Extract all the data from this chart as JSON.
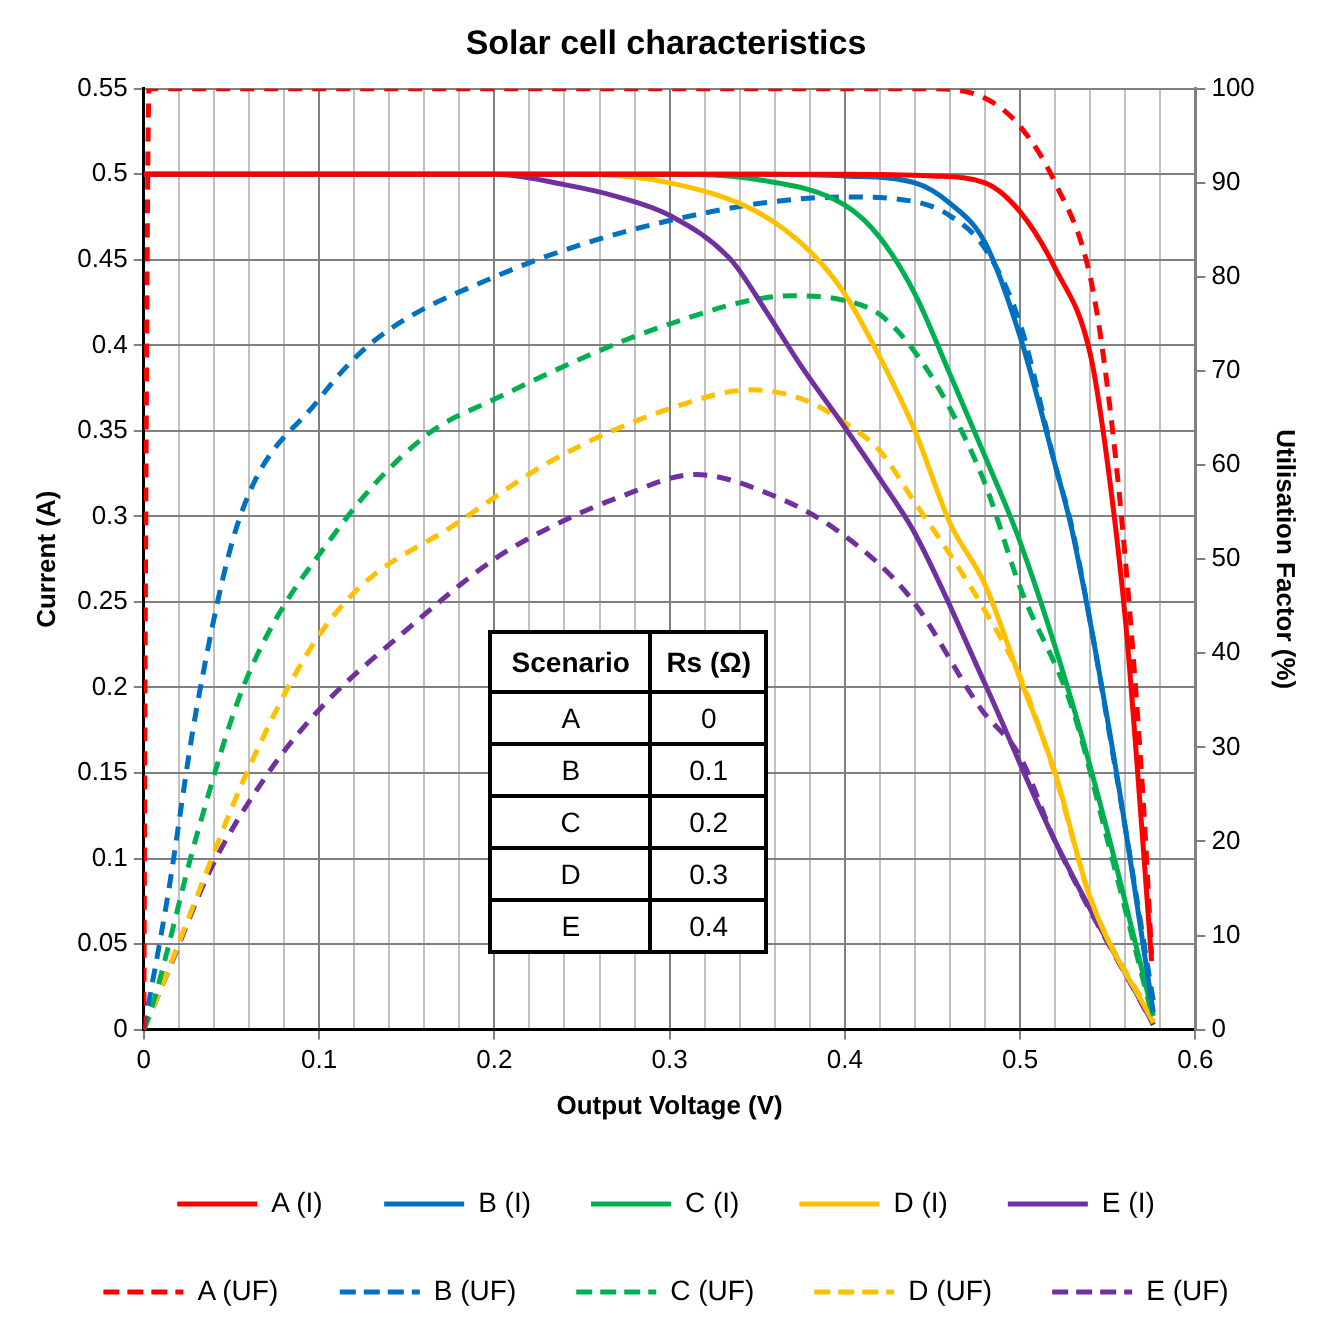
{
  "chart_data": {
    "type": "line",
    "title": "Solar cell characteristics",
    "xlabel": "Output Voltage (V)",
    "ylabel": "Current (A)",
    "y2label": "Utilisation Factor (%)",
    "xlim": [
      0,
      0.6
    ],
    "xticks": [
      0,
      {
        "value": 0.02,
        "label": null
      },
      {
        "value": 0.04,
        "label": null
      },
      {
        "value": 0.06,
        "label": null
      },
      {
        "value": 0.08,
        "label": null
      },
      0.1,
      {
        "value": 0.12,
        "label": null
      },
      {
        "value": 0.14,
        "label": null
      },
      {
        "value": 0.16,
        "label": null
      },
      {
        "value": 0.18,
        "label": null
      },
      0.2,
      {
        "value": 0.22,
        "label": null
      },
      {
        "value": 0.24,
        "label": null
      },
      {
        "value": 0.26,
        "label": null
      },
      {
        "value": 0.28,
        "label": null
      },
      0.3,
      {
        "value": 0.32,
        "label": null
      },
      {
        "value": 0.34,
        "label": null
      },
      {
        "value": 0.36,
        "label": null
      },
      {
        "value": 0.38,
        "label": null
      },
      0.4,
      {
        "value": 0.42,
        "label": null
      },
      {
        "value": 0.44,
        "label": null
      },
      {
        "value": 0.46,
        "label": null
      },
      {
        "value": 0.48,
        "label": null
      },
      0.5,
      {
        "value": 0.52,
        "label": null
      },
      {
        "value": 0.54,
        "label": null
      },
      {
        "value": 0.56,
        "label": null
      },
      {
        "value": 0.58,
        "label": null
      },
      0.6
    ],
    "ylim": [
      0,
      0.55
    ],
    "yticks": [
      0,
      0.05,
      0.1,
      0.15,
      0.2,
      0.25,
      0.3,
      0.35,
      0.4,
      0.45,
      0.5,
      0.55
    ],
    "y2lim": [
      0,
      100
    ],
    "y2ticks": [
      0,
      10,
      20,
      30,
      40,
      50,
      60,
      70,
      80,
      90,
      100
    ],
    "grid": true,
    "legend": "bottom",
    "marker": "none",
    "annotations": [
      "Scenario",
      "Rs (Ω)",
      "A",
      "0",
      "B",
      "0.1",
      "C",
      "0.2",
      "D",
      "0.3",
      "E",
      "0.4"
    ],
    "series": [
      {
        "name": "A (I)",
        "color": "#ff0000",
        "line_style": "solid",
        "x": [
          0,
          0.4,
          0.45,
          0.48,
          0.5,
          0.52,
          0.54,
          0.55,
          0.56,
          0.57,
          0.575
        ],
        "values": [
          0.5,
          0.5,
          0.499,
          0.495,
          0.478,
          0.445,
          0.395,
          0.33,
          0.24,
          0.11,
          0.04
        ]
      },
      {
        "name": "B (I)",
        "color": "#0070c0",
        "line_style": "solid",
        "x": [
          0,
          0.35,
          0.4,
          0.44,
          0.46,
          0.48,
          0.5,
          0.52,
          0.53,
          0.555,
          0.576
        ],
        "values": [
          0.5,
          0.5,
          0.499,
          0.495,
          0.483,
          0.46,
          0.405,
          0.33,
          0.29,
          0.15,
          0.01
        ]
      },
      {
        "name": "C (I)",
        "color": "#00b050",
        "line_style": "solid",
        "x": [
          0,
          0.3,
          0.35,
          0.4,
          0.42,
          0.44,
          0.46,
          0.48,
          0.5,
          0.53,
          0.55,
          0.576
        ],
        "values": [
          0.5,
          0.5,
          0.497,
          0.482,
          0.463,
          0.43,
          0.383,
          0.335,
          0.285,
          0.19,
          0.115,
          0.008
        ]
      },
      {
        "name": "D (I)",
        "color": "#ffc000",
        "line_style": "solid",
        "x": [
          0,
          0.25,
          0.3,
          0.35,
          0.38,
          0.4,
          0.42,
          0.44,
          0.46,
          0.48,
          0.5,
          0.52,
          0.54,
          0.576
        ],
        "values": [
          0.5,
          0.5,
          0.495,
          0.478,
          0.455,
          0.43,
          0.393,
          0.35,
          0.296,
          0.26,
          0.205,
          0.15,
          0.077,
          0.004
        ]
      },
      {
        "name": "E (I)",
        "color": "#7030a0",
        "line_style": "solid",
        "x": [
          0,
          0.2,
          0.24,
          0.27,
          0.3,
          0.335,
          0.355,
          0.375,
          0.4,
          0.42,
          0.44,
          0.48,
          0.52,
          0.576
        ],
        "values": [
          0.5,
          0.5,
          0.494,
          0.487,
          0.476,
          0.45,
          0.42,
          0.388,
          0.352,
          0.322,
          0.29,
          0.202,
          0.11,
          0.003
        ]
      },
      {
        "name": "A (UF)",
        "color": "#ff0000",
        "line_style": "dashed",
        "axis": "y2",
        "x": [
          0,
          0.001,
          0.003,
          0.45,
          0.48,
          0.5,
          0.52,
          0.54,
          0.55,
          0.56,
          0.57,
          0.575
        ],
        "values": [
          0,
          50,
          100,
          100,
          99,
          96,
          90,
          80,
          68,
          50,
          25,
          8
        ]
      },
      {
        "name": "B (UF)",
        "color": "#0070c0",
        "line_style": "dashed",
        "axis": "y2",
        "x": [
          0,
          0.0135,
          0.03,
          0.054,
          0.1,
          0.13,
          0.2,
          0.3,
          0.4,
          0.44,
          0.46,
          0.48,
          0.5,
          0.52,
          0.53,
          0.555,
          0.576
        ],
        "values": [
          0,
          14,
          34,
          54,
          67,
          73,
          80,
          86,
          88.5,
          88,
          86.5,
          83,
          75,
          60,
          53,
          27,
          3
        ]
      },
      {
        "name": "C (UF)",
        "color": "#00b050",
        "line_style": "dashed",
        "axis": "y2",
        "x": [
          0,
          0.005,
          0.03,
          0.058,
          0.11,
          0.16,
          0.2,
          0.3,
          0.37,
          0.4,
          0.42,
          0.44,
          0.46,
          0.48,
          0.5,
          0.53,
          0.55,
          0.576
        ],
        "values": [
          0,
          2.6,
          20.5,
          37,
          53,
          63,
          67,
          75,
          78,
          77.5,
          76,
          72,
          66,
          58,
          47,
          34,
          20,
          1
        ]
      },
      {
        "name": "D (UF)",
        "color": "#ffc000",
        "line_style": "dashed",
        "axis": "y2",
        "x": [
          0,
          0.009,
          0.03,
          0.058,
          0.095,
          0.123,
          0.176,
          0.233,
          0.3,
          0.347,
          0.376,
          0.4,
          0.42,
          0.44,
          0.46,
          0.48,
          0.5,
          0.52,
          0.54,
          0.576
        ],
        "values": [
          0,
          4,
          14,
          27,
          40.5,
          47,
          53.5,
          60.5,
          66,
          68,
          67,
          64.5,
          61.5,
          56,
          50.5,
          44.5,
          37.5,
          27,
          14,
          1
        ]
      },
      {
        "name": "E (UF)",
        "color": "#7030a0",
        "line_style": "dashed",
        "axis": "y2",
        "x": [
          0,
          0.0135,
          0.038,
          0.07,
          0.1,
          0.15,
          0.2,
          0.233,
          0.27,
          0.315,
          0.356,
          0.396,
          0.437,
          0.478,
          0.5,
          0.52,
          0.576
        ],
        "values": [
          0,
          6,
          17,
          27,
          34,
          42.5,
          50,
          53.5,
          56.5,
          59,
          57,
          53,
          46,
          34,
          29,
          20,
          0.5
        ]
      }
    ]
  }
}
